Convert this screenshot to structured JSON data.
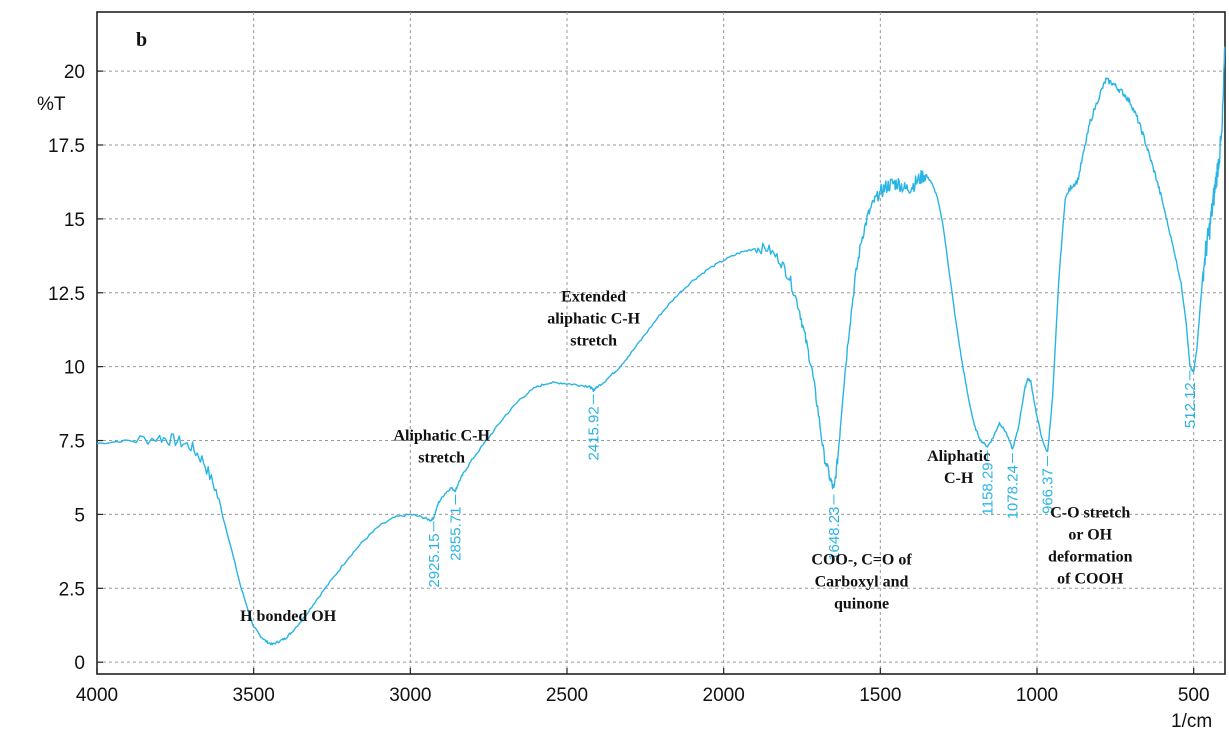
{
  "chart_data": {
    "type": "line",
    "panel_label": "b",
    "ylabel": "%T",
    "xlabel": "1/cm",
    "xlim": [
      4000,
      400
    ],
    "ylim": [
      -0.4,
      22.0
    ],
    "grid": true,
    "x_ticks": [
      4000,
      3500,
      3000,
      2500,
      2000,
      1500,
      1000,
      500
    ],
    "x_tick_labels": [
      "4000",
      "3500",
      "3000",
      "2500",
      "2000",
      "1500",
      "1000",
      "500"
    ],
    "y_ticks": [
      0,
      2.5,
      5,
      7.5,
      10,
      12.5,
      15,
      17.5,
      20
    ],
    "y_tick_labels": [
      "0",
      "2.5",
      "5",
      "7.5",
      "10",
      "12.5",
      "15",
      "17.5",
      "20"
    ],
    "line_color": "#29b5e3",
    "series": [
      {
        "x": [
          4000,
          3900,
          3800,
          3750,
          3700,
          3660,
          3620,
          3580,
          3540,
          3500,
          3480,
          3460,
          3440,
          3420,
          3400,
          3380,
          3340,
          3300,
          3250,
          3200,
          3150,
          3100,
          3050,
          3000,
          2960,
          2935,
          2925,
          2910,
          2890,
          2870,
          2856,
          2845,
          2830,
          2800,
          2750,
          2700,
          2650,
          2600,
          2560,
          2520,
          2480,
          2440,
          2425,
          2416,
          2405,
          2380,
          2340,
          2300,
          2250,
          2200,
          2150,
          2100,
          2050,
          2000,
          1950,
          1900,
          1860,
          1820,
          1790,
          1760,
          1740,
          1720,
          1700,
          1680,
          1660,
          1648,
          1635,
          1620,
          1600,
          1580,
          1560,
          1540,
          1520,
          1500,
          1480,
          1460,
          1440,
          1420,
          1400,
          1380,
          1360,
          1340,
          1320,
          1300,
          1280,
          1260,
          1240,
          1220,
          1200,
          1180,
          1158,
          1140,
          1120,
          1100,
          1078,
          1060,
          1040,
          1030,
          1020,
          1000,
          980,
          966,
          950,
          930,
          910,
          890,
          870,
          850,
          830,
          800,
          780,
          760,
          740,
          720,
          700,
          680,
          660,
          640,
          620,
          600,
          580,
          560,
          540,
          525,
          512,
          500,
          490,
          480,
          470,
          460,
          450,
          440,
          430,
          420,
          410,
          400
        ],
        "y": [
          7.4,
          7.5,
          7.6,
          7.5,
          7.3,
          6.8,
          5.8,
          4.2,
          2.5,
          1.2,
          0.9,
          0.7,
          0.6,
          0.7,
          0.8,
          1.0,
          1.5,
          2.1,
          2.8,
          3.5,
          4.1,
          4.6,
          4.9,
          5.0,
          4.9,
          4.8,
          4.9,
          5.4,
          5.7,
          5.9,
          5.8,
          6.1,
          6.4,
          6.9,
          7.6,
          8.3,
          8.9,
          9.3,
          9.45,
          9.45,
          9.4,
          9.35,
          9.3,
          9.2,
          9.3,
          9.5,
          9.9,
          10.4,
          11.1,
          11.8,
          12.4,
          12.9,
          13.3,
          13.6,
          13.85,
          14.0,
          14.0,
          13.6,
          13.0,
          12.0,
          11.0,
          10.0,
          8.6,
          7.0,
          6.2,
          5.8,
          7.0,
          9.0,
          11.2,
          13.0,
          14.3,
          15.1,
          15.6,
          15.9,
          16.1,
          16.2,
          16.2,
          16.0,
          16.1,
          16.3,
          16.5,
          16.3,
          15.8,
          14.8,
          13.2,
          11.6,
          10.2,
          9.0,
          8.0,
          7.5,
          7.3,
          7.6,
          8.1,
          7.8,
          7.2,
          7.9,
          9.2,
          9.6,
          9.5,
          8.3,
          7.4,
          7.1,
          9.0,
          13.0,
          15.7,
          16.1,
          16.3,
          17.3,
          18.3,
          19.2,
          19.7,
          19.6,
          19.4,
          19.2,
          18.9,
          18.4,
          17.8,
          17.1,
          16.4,
          15.6,
          14.7,
          13.8,
          12.8,
          11.6,
          10.0,
          9.8,
          10.6,
          11.9,
          13.2,
          14.0,
          14.6,
          15.4,
          16.2,
          17.0,
          17.8,
          20.8
        ]
      }
    ],
    "peak_labels": [
      {
        "label": "2925.15",
        "x": 2925.15
      },
      {
        "label": "2855.71",
        "x": 2855.71
      },
      {
        "label": "2415.92",
        "x": 2415.92
      },
      {
        "label": "1648.23",
        "x": 1648.23
      },
      {
        "label": "1158.29",
        "x": 1158.29
      },
      {
        "label": "1078.24",
        "x": 1078.24
      },
      {
        "label": "966.37",
        "x": 966.37
      },
      {
        "label": "512.12",
        "x": 512.12
      }
    ],
    "annotations": [
      {
        "lines": [
          "H bonded OH"
        ],
        "x": 3390,
        "y": 1.4
      },
      {
        "lines": [
          "Aliphatic C-H",
          "stretch"
        ],
        "x": 2900,
        "y": 7.5
      },
      {
        "lines": [
          "Extended",
          "aliphatic C-H",
          "stretch"
        ],
        "x": 2415,
        "y": 12.2
      },
      {
        "lines": [
          "COO-, C=O of",
          "Carboxyl and",
          "quinone"
        ],
        "x": 1560,
        "y": 3.3
      },
      {
        "lines": [
          "Aliphatic",
          "C-H"
        ],
        "x": 1250,
        "y": 6.8
      },
      {
        "lines": [
          "C-O stretch",
          "or OH",
          "deformation",
          "of COOH"
        ],
        "x": 830,
        "y": 4.9
      }
    ]
  }
}
